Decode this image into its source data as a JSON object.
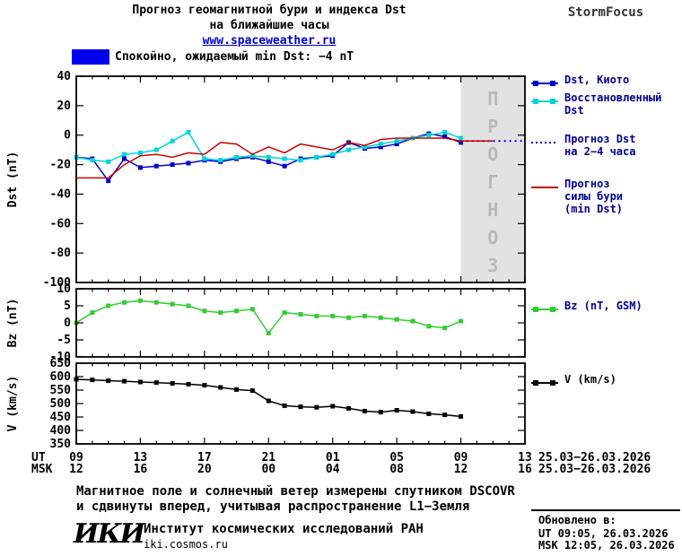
{
  "header": {
    "title_line1": "Прогноз геомагнитной бури и индекса Dst",
    "title_line2": "на ближайшие часы",
    "site": "www.spaceweather.ru",
    "brand": "StormFocus"
  },
  "status": {
    "label": "Спокойно, ожидаемый min Dst: −4 nT",
    "color": "#0000ee"
  },
  "legend": {
    "dst_kyoto": "Dst, Киото",
    "restored": "Восстановленный\nDst",
    "forecast_dst": "Прогноз Dst\nна 2−4 часа",
    "storm_force": "Прогноз\nсилы бури\n(min Dst)",
    "bz": "Bz (nT, GSM)",
    "v": "V (km/s)"
  },
  "x_axis_rows": {
    "ut_prefix": "UT",
    "msk_prefix": "MSK",
    "ut_date": "25.03−26.03.2026",
    "msk_date": "25.03−26.03.2026"
  },
  "footer": {
    "note_line1": "Магнитное поле и солнечный ветер измерены спутником DSCOVR",
    "note_line2": "и сдвинуты вперед, учитывая распространение L1−Земля",
    "logo": "ИКИ",
    "institute": "Институт космических исследований РАН",
    "institute_site": "iki.cosmos.ru",
    "updated_label": "Обновлено в:",
    "updated_ut": "UT  09:05, 26.03.2026",
    "updated_msk": "MSK 12:05, 26.03.2026"
  },
  "chart_data": {
    "type": "line",
    "title": "Прогноз геомагнитной бури и индекса Dst на ближайшие часы",
    "x_axis": {
      "min": 9,
      "max": 37,
      "tick_step_hours": 4,
      "tick_hours_ut": [
        "09",
        "13",
        "17",
        "21",
        "01",
        "05",
        "09",
        "13"
      ],
      "tick_hours_msk": [
        "12",
        "16",
        "20",
        "00",
        "04",
        "08",
        "12",
        "16"
      ],
      "date_range": "25.03−26.03.2026"
    },
    "forecast_region": {
      "x_start": 33,
      "x_end": 37,
      "label": "ПРОГНОЗ",
      "bg_color": "#e2e2e2",
      "text_color": "#b8b8b8"
    },
    "panels": [
      {
        "name": "dst",
        "ylabel": "Dst (nT)",
        "ylim": [
          -100,
          40
        ],
        "yticks": [
          40,
          20,
          0,
          -20,
          -40,
          -60,
          -80,
          -100
        ],
        "series": [
          {
            "name": "Dst, Киото",
            "color": "#0000cc",
            "marker": "square",
            "style": "solid",
            "x_start": 9,
            "values": [
              -15,
              -16,
              -31,
              -16,
              -22,
              -21,
              -20,
              -19,
              -17,
              -18,
              -16,
              -15,
              -18,
              -21,
              -16,
              -15,
              -14,
              -5,
              -9,
              -8,
              -6,
              -2,
              1,
              -1,
              -5
            ]
          },
          {
            "name": "Восстановленный Dst",
            "color": "#00d5d5",
            "marker": "square",
            "style": "solid",
            "x_start": 9,
            "values": [
              -15,
              -17,
              -18,
              -13,
              -12,
              -10,
              -4,
              2,
              -16,
              -17,
              -15,
              -14,
              -15,
              -16,
              -17,
              -15,
              -13,
              -10,
              -8,
              -6,
              -4,
              -2,
              0,
              2,
              -2
            ]
          },
          {
            "name": "Прогноз Dst на 2−4 часа",
            "color": "#0000cc",
            "marker": "none",
            "style": "dotted",
            "x_start": 33,
            "values": [
              -4,
              -4,
              -4,
              -4,
              -4
            ]
          },
          {
            "name": "Прогноз силы бури (min Dst)",
            "color": "#cc0000",
            "marker": "none",
            "style": "solid",
            "x_start": 9,
            "values": [
              -29,
              -29,
              -29,
              -20,
              -14,
              -13,
              -15,
              -12,
              -13,
              -5,
              -6,
              -13,
              -8,
              -12,
              -6,
              -8,
              -10,
              -5,
              -7,
              -3,
              -2,
              -2,
              -2,
              -2,
              -4,
              -4,
              -4
            ]
          }
        ]
      },
      {
        "name": "bz",
        "ylabel": "Bz (nT)",
        "ylim": [
          -10,
          10
        ],
        "yticks": [
          10,
          5,
          0,
          -5,
          -10
        ],
        "series": [
          {
            "name": "Bz (nT, GSM)",
            "color": "#33cc33",
            "marker": "square",
            "style": "solid",
            "x_start": 9,
            "values": [
              0,
              3,
              5,
              6,
              6.5,
              6,
              5.5,
              5,
              3.5,
              3,
              3.5,
              4,
              -3,
              3,
              2.5,
              2,
              2,
              1.5,
              2,
              1.5,
              1,
              0.5,
              -1,
              -1.5,
              0.5
            ]
          }
        ]
      },
      {
        "name": "v",
        "ylabel": "V (km/s)",
        "ylim": [
          350,
          650
        ],
        "yticks": [
          650,
          600,
          550,
          500,
          450,
          400,
          350
        ],
        "series": [
          {
            "name": "V (km/s)",
            "color": "#000000",
            "marker": "square",
            "style": "solid",
            "x_start": 9,
            "values": [
              590,
              588,
              585,
              583,
              580,
              578,
              575,
              572,
              568,
              560,
              552,
              548,
              510,
              492,
              488,
              486,
              490,
              482,
              472,
              468,
              475,
              470,
              462,
              458,
              452
            ]
          }
        ]
      }
    ]
  }
}
